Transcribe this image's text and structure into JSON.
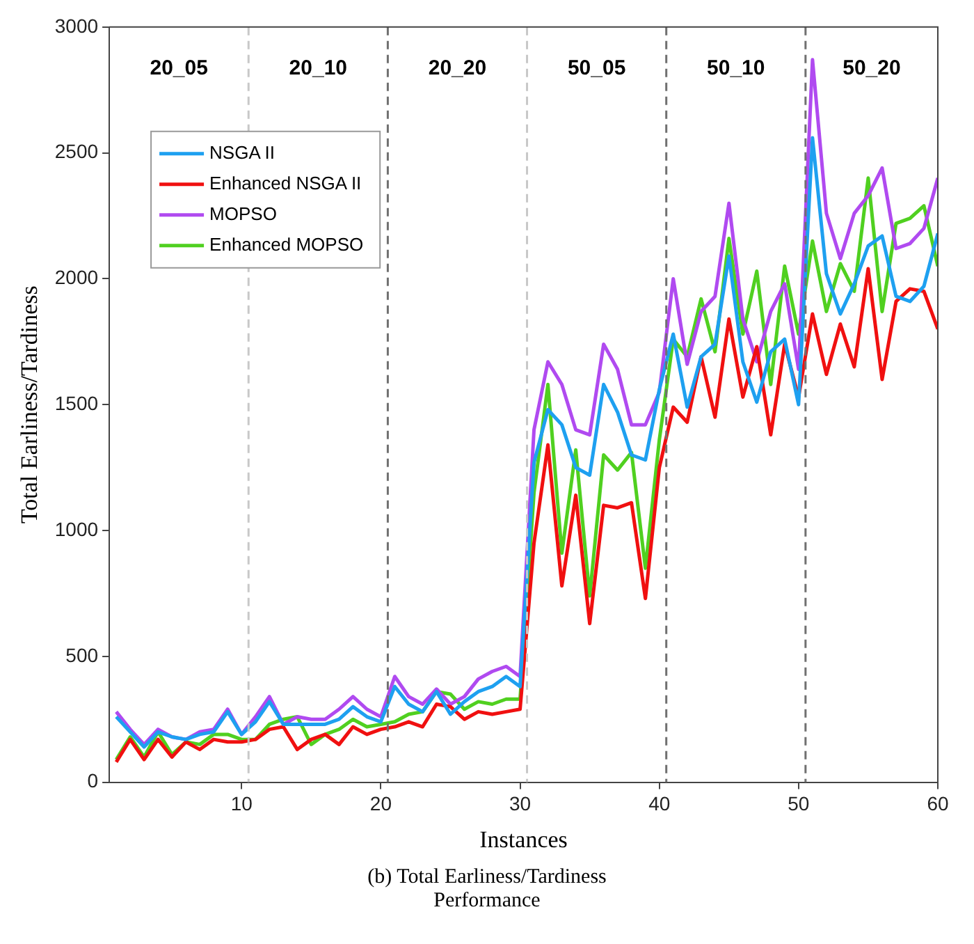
{
  "chart_data": {
    "type": "line",
    "title": "(b) Total Earliness/Tardiness Performance",
    "xlabel": "Instances",
    "ylabel": "Total Earliness/Tardiness",
    "x": [
      1,
      2,
      3,
      4,
      5,
      6,
      7,
      8,
      9,
      10,
      11,
      12,
      13,
      14,
      15,
      16,
      17,
      18,
      19,
      20,
      21,
      22,
      23,
      24,
      25,
      26,
      27,
      28,
      29,
      30,
      31,
      32,
      33,
      34,
      35,
      36,
      37,
      38,
      39,
      40,
      41,
      42,
      43,
      44,
      45,
      46,
      47,
      48,
      49,
      50,
      51,
      52,
      53,
      54,
      55,
      56,
      57,
      58,
      59,
      60
    ],
    "series": [
      {
        "name": "NSGA II",
        "color": "#1ea0f0",
        "values": [
          260,
          200,
          140,
          200,
          180,
          170,
          190,
          200,
          280,
          190,
          240,
          320,
          230,
          230,
          230,
          230,
          250,
          300,
          260,
          240,
          380,
          310,
          280,
          360,
          270,
          320,
          360,
          380,
          420,
          380,
          1270,
          1480,
          1420,
          1250,
          1220,
          1580,
          1470,
          1300,
          1280,
          1560,
          1780,
          1490,
          1690,
          1740,
          2090,
          1670,
          1510,
          1710,
          1760,
          1500,
          2560,
          2020,
          1860,
          1980,
          2130,
          2170,
          1930,
          1910,
          1970,
          2180
        ]
      },
      {
        "name": "Enhanced NSGA II",
        "color": "#f01010",
        "values": [
          80,
          170,
          90,
          170,
          100,
          160,
          130,
          170,
          160,
          160,
          170,
          210,
          220,
          130,
          170,
          190,
          150,
          220,
          190,
          210,
          220,
          240,
          220,
          310,
          300,
          250,
          280,
          270,
          280,
          290,
          950,
          1340,
          780,
          1140,
          630,
          1100,
          1090,
          1110,
          730,
          1250,
          1490,
          1430,
          1690,
          1450,
          1840,
          1530,
          1730,
          1380,
          1740,
          1530,
          1860,
          1620,
          1820,
          1650,
          2040,
          1600,
          1910,
          1960,
          1950,
          1800
        ]
      },
      {
        "name": "MOPSO",
        "color": "#b04af0",
        "values": [
          280,
          210,
          150,
          210,
          180,
          170,
          200,
          210,
          290,
          190,
          260,
          340,
          230,
          260,
          250,
          250,
          290,
          340,
          290,
          260,
          420,
          340,
          310,
          370,
          310,
          340,
          410,
          440,
          460,
          420,
          1400,
          1670,
          1580,
          1400,
          1380,
          1740,
          1640,
          1420,
          1420,
          1550,
          2000,
          1660,
          1870,
          1930,
          2300,
          1840,
          1670,
          1870,
          1980,
          1640,
          2870,
          2260,
          2080,
          2260,
          2330,
          2440,
          2120,
          2140,
          2200,
          2400
        ]
      },
      {
        "name": "Enhanced MOPSO",
        "color": "#50d020",
        "values": [
          90,
          180,
          100,
          200,
          110,
          160,
          150,
          190,
          190,
          170,
          170,
          230,
          250,
          260,
          150,
          190,
          210,
          250,
          220,
          230,
          240,
          270,
          280,
          360,
          350,
          290,
          320,
          310,
          330,
          330,
          1150,
          1580,
          910,
          1320,
          740,
          1300,
          1240,
          1310,
          850,
          1360,
          1760,
          1690,
          1920,
          1710,
          2160,
          1780,
          2030,
          1580,
          2050,
          1780,
          2150,
          1870,
          2060,
          1950,
          2400,
          1870,
          2220,
          2240,
          2290,
          2050
        ]
      }
    ],
    "xlim": [
      0.5,
      60
    ],
    "xticks": [
      10,
      20,
      30,
      40,
      50,
      60
    ],
    "ylim": [
      0,
      3000
    ],
    "yticks": [
      0,
      500,
      1000,
      1500,
      2000,
      2500,
      3000
    ],
    "ref_lines": [
      {
        "axis": "x",
        "value": 10.5,
        "color": "#c8c8c8",
        "line_style": "dashed"
      },
      {
        "axis": "x",
        "value": 20.5,
        "color": "#707070",
        "line_style": "dashed"
      },
      {
        "axis": "x",
        "value": 30.5,
        "color": "#c8c8c8",
        "line_style": "dashed"
      },
      {
        "axis": "x",
        "value": 40.5,
        "color": "#707070",
        "line_style": "dashed"
      },
      {
        "axis": "x",
        "value": 50.5,
        "color": "#707070",
        "line_style": "dashed"
      }
    ],
    "annotations": [
      "20_05",
      "20_10",
      "20_20",
      "50_05",
      "50_10",
      "50_20"
    ],
    "legend": "top left",
    "grid": false,
    "marker": "none",
    "line_style": "solid"
  }
}
